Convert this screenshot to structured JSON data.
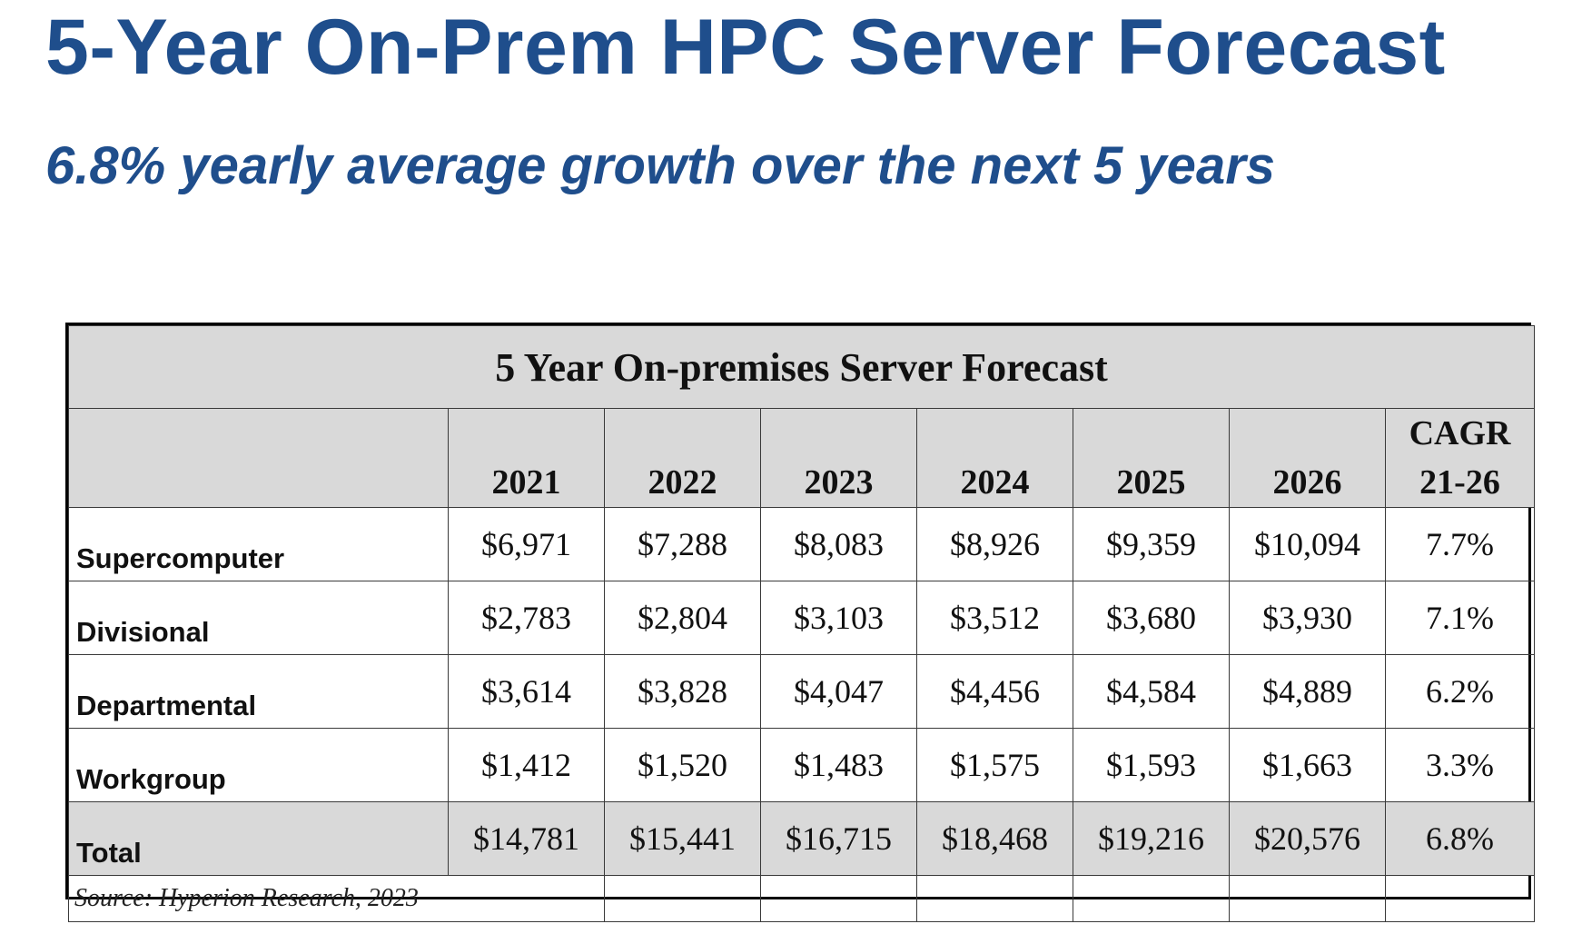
{
  "slide": {
    "title": "5-Year On-Prem HPC Server Forecast",
    "subtitle": "6.8% yearly average growth over the next 5 years"
  },
  "table": {
    "caption": "5 Year On-premises Server Forecast",
    "years": [
      "2021",
      "2022",
      "2023",
      "2024",
      "2025",
      "2026"
    ],
    "cagr_header_line1": "CAGR",
    "cagr_header_line2": "21-26",
    "rows": [
      {
        "label": "Supercomputer",
        "values": [
          "$6,971",
          "$7,288",
          "$8,083",
          "$8,926",
          "$9,359",
          "$10,094"
        ],
        "cagr": "7.7%"
      },
      {
        "label": "Divisional",
        "values": [
          "$2,783",
          "$2,804",
          "$3,103",
          "$3,512",
          "$3,680",
          "$3,930"
        ],
        "cagr": "7.1%"
      },
      {
        "label": "Departmental",
        "values": [
          "$3,614",
          "$3,828",
          "$4,047",
          "$4,456",
          "$4,584",
          "$4,889"
        ],
        "cagr": "6.2%"
      },
      {
        "label": "Workgroup",
        "values": [
          "$1,412",
          "$1,520",
          "$1,483",
          "$1,575",
          "$1,593",
          "$1,663"
        ],
        "cagr": "3.3%"
      }
    ],
    "total": {
      "label": "Total",
      "values": [
        "$14,781",
        "$15,441",
        "$16,715",
        "$18,468",
        "$19,216",
        "$20,576"
      ],
      "cagr": "6.8%"
    },
    "source": "Source: Hyperion Research, 2023"
  }
}
